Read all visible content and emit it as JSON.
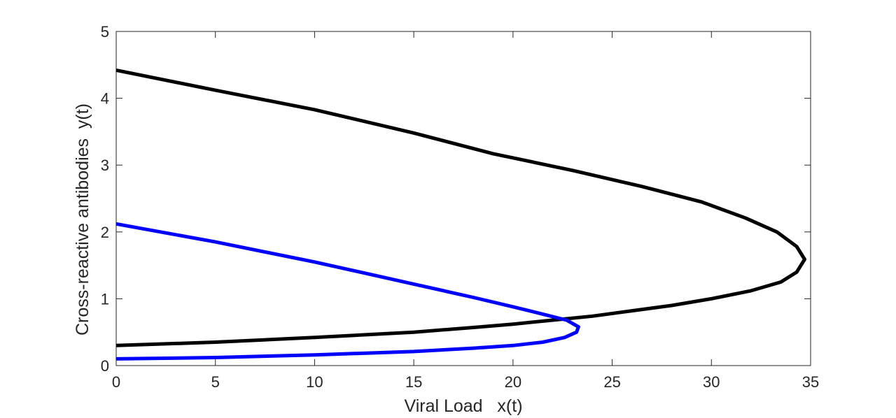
{
  "chart_data": {
    "type": "line",
    "xlabel": "Viral Load   x(t)",
    "ylabel": "Cross-reactive antibodies  y(t)",
    "xlim": [
      0,
      35
    ],
    "ylim": [
      0,
      5
    ],
    "xticks": [
      "0",
      "5",
      "10",
      "15",
      "20",
      "25",
      "30",
      "35"
    ],
    "yticks": [
      "0",
      "1",
      "2",
      "3",
      "4",
      "5"
    ],
    "grid": false,
    "legend": "none",
    "series": [
      {
        "color": "#000000",
        "points": [
          [
            0,
            0.3
          ],
          [
            5,
            0.35
          ],
          [
            10,
            0.42
          ],
          [
            15,
            0.5
          ],
          [
            18,
            0.57
          ],
          [
            20,
            0.62
          ],
          [
            22,
            0.68
          ],
          [
            24,
            0.74
          ],
          [
            26,
            0.82
          ],
          [
            28,
            0.9
          ],
          [
            30,
            1.0
          ],
          [
            32,
            1.12
          ],
          [
            33.5,
            1.25
          ],
          [
            34.3,
            1.4
          ],
          [
            34.7,
            1.59
          ],
          [
            34.3,
            1.78
          ],
          [
            33.3,
            2.0
          ],
          [
            31.7,
            2.21
          ],
          [
            29.5,
            2.45
          ],
          [
            26.5,
            2.68
          ],
          [
            23,
            2.92
          ],
          [
            19,
            3.17
          ],
          [
            15,
            3.48
          ],
          [
            10,
            3.83
          ],
          [
            5,
            4.12
          ],
          [
            0,
            4.42
          ]
        ]
      },
      {
        "color": "#0000ff",
        "points": [
          [
            0,
            0.1
          ],
          [
            5,
            0.12
          ],
          [
            10,
            0.16
          ],
          [
            15,
            0.21
          ],
          [
            18,
            0.26
          ],
          [
            20,
            0.3
          ],
          [
            21.5,
            0.35
          ],
          [
            22.6,
            0.42
          ],
          [
            23.2,
            0.5
          ],
          [
            23.3,
            0.58
          ],
          [
            22.7,
            0.68
          ],
          [
            21.5,
            0.77
          ],
          [
            20,
            0.88
          ],
          [
            18,
            1.02
          ],
          [
            15,
            1.22
          ],
          [
            10,
            1.55
          ],
          [
            5,
            1.85
          ],
          [
            0,
            2.12
          ]
        ]
      }
    ]
  }
}
